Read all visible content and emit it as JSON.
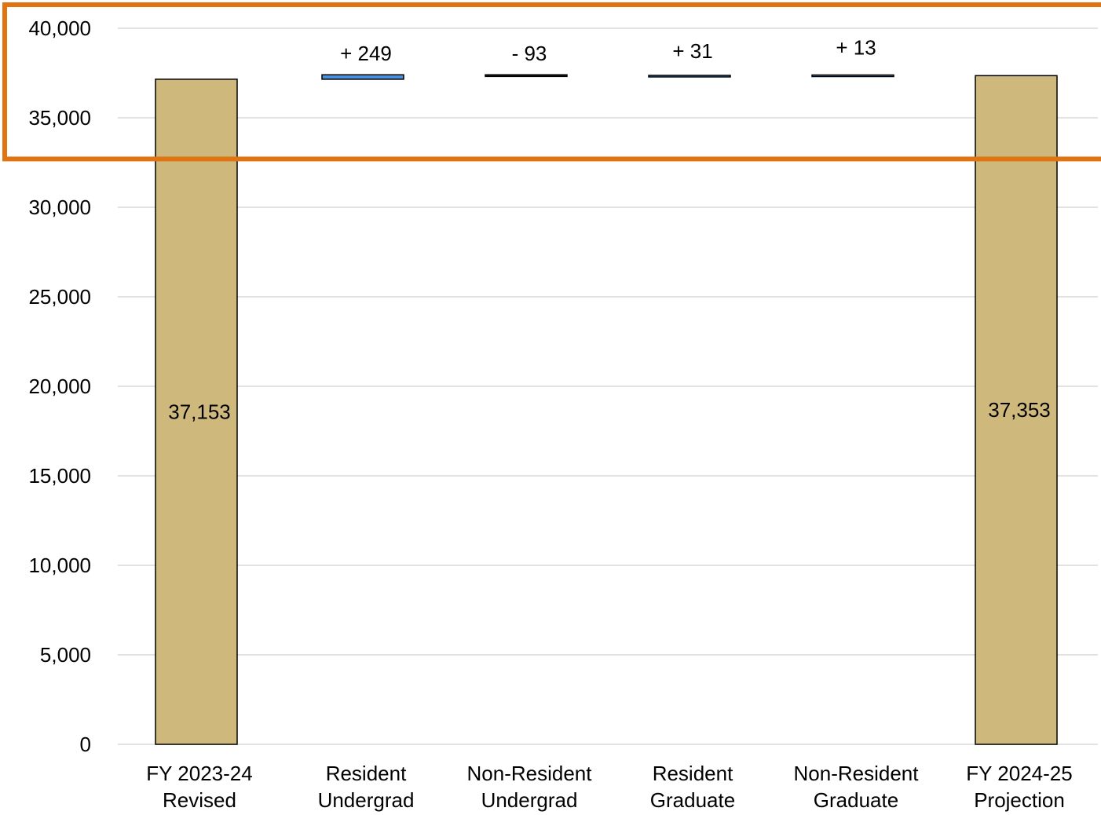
{
  "chart_data": {
    "type": "bar",
    "subtype": "waterfall",
    "title": "",
    "xlabel": "",
    "ylabel": "",
    "ylim": [
      0,
      40000
    ],
    "yticks": [
      0,
      5000,
      10000,
      15000,
      20000,
      25000,
      30000,
      35000,
      40000
    ],
    "ytick_labels": [
      "0",
      "5,000",
      "10,000",
      "15,000",
      "20,000",
      "25,000",
      "30,000",
      "35,000",
      "40,000"
    ],
    "grid": true,
    "legend": "none",
    "categories": [
      [
        "FY 2023-24",
        "Revised"
      ],
      [
        "Resident",
        "Undergrad"
      ],
      [
        "Non-Resident",
        "Undergrad"
      ],
      [
        "Resident",
        "Graduate"
      ],
      [
        "Non-Resident",
        "Graduate"
      ],
      [
        "FY 2024-25",
        "Projection"
      ]
    ],
    "bars": [
      {
        "kind": "total",
        "value": 37153,
        "label": "37,153"
      },
      {
        "kind": "delta",
        "value": 249,
        "label": "+ 249"
      },
      {
        "kind": "delta",
        "value": -93,
        "label": "- 93"
      },
      {
        "kind": "delta",
        "value": 31,
        "label": "+ 31"
      },
      {
        "kind": "delta",
        "value": 13,
        "label": "+ 13"
      },
      {
        "kind": "total",
        "value": 37353,
        "label": "37,353"
      }
    ],
    "colors": {
      "total_fill": "#cfb87c",
      "increase_fill": "#4a90d9",
      "decrease_fill": "#1a1a1a",
      "bar_outline": "#000000",
      "grid": "#d9d9d9",
      "highlight_box": "#e07412"
    },
    "highlight": {
      "y_range": [
        32700,
        40000
      ]
    }
  }
}
